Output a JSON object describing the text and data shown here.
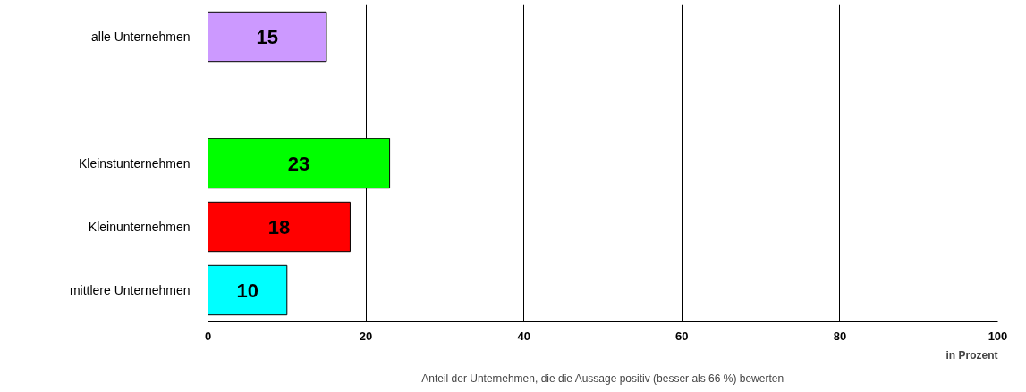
{
  "chart_data": {
    "type": "bar",
    "orientation": "horizontal",
    "categories": [
      "alle Unternehmen",
      null,
      "Kleinstunternehmen",
      "Kleinunternehmen",
      "mittlere Unternehmen"
    ],
    "values": [
      15,
      null,
      23,
      18,
      10
    ],
    "colors": [
      "#cc99ff",
      null,
      "#00ff00",
      "#ff0000",
      "#00ffff"
    ],
    "xlim": [
      0,
      100
    ],
    "xticks": [
      0,
      20,
      40,
      60,
      80,
      100
    ],
    "grid": "x",
    "data_labels": true,
    "xlabel": "in Prozent",
    "annotations": [
      "Anteil der Unternehmen, die die Aussage positiv (besser als 66 %) bewerten"
    ]
  }
}
